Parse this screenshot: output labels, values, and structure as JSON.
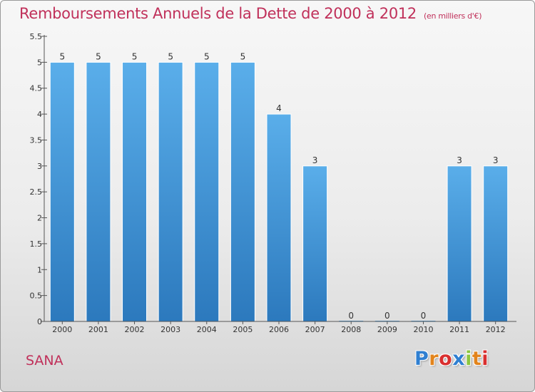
{
  "chart_data": {
    "type": "bar",
    "title": "Remboursements Annuels de la Dette de 2000 à 2012",
    "unit_note": "(en milliers d'€)",
    "categories": [
      "2000",
      "2001",
      "2002",
      "2003",
      "2004",
      "2005",
      "2006",
      "2007",
      "2008",
      "2009",
      "2010",
      "2011",
      "2012"
    ],
    "values": [
      5,
      5,
      5,
      5,
      5,
      5,
      4,
      3,
      0,
      0,
      0,
      3,
      3
    ],
    "data_labels": [
      "5",
      "5",
      "5",
      "5",
      "5",
      "5",
      "4",
      "3",
      "0",
      "0",
      "0",
      "3",
      "3"
    ],
    "y_ticks": [
      0,
      0.5,
      1,
      1.5,
      2,
      2.5,
      3,
      3.5,
      4,
      4.5,
      5,
      5.5
    ],
    "y_tick_labels": [
      "0",
      "0.5",
      "1",
      "1.5",
      "2",
      "2.5",
      "3",
      "3.5",
      "4",
      "4.5",
      "5",
      "5.5"
    ],
    "ylim": [
      0,
      5.5
    ],
    "xlabel": "",
    "ylabel": "",
    "grid": false,
    "bar_color": "#4a9edf",
    "title_color": "#c0305a"
  },
  "footer": {
    "commune": "SANA",
    "brand_letters": [
      {
        "ch": "P",
        "color": "#2f7fd1"
      },
      {
        "ch": "r",
        "color": "#e2841c"
      },
      {
        "ch": "o",
        "color": "#d92f2f"
      },
      {
        "ch": "x",
        "color": "#2f7fd1"
      },
      {
        "ch": "i",
        "color": "#8cc63f"
      },
      {
        "ch": "t",
        "color": "#e2841c"
      },
      {
        "ch": "i",
        "color": "#d92f2f"
      }
    ]
  }
}
